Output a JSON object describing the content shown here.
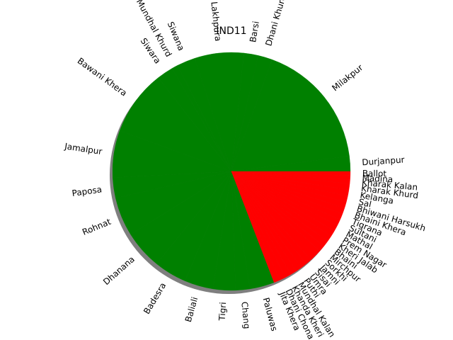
{
  "chart_data": {
    "type": "pie",
    "title": "IND11",
    "categories": [
      "Durjanpur",
      "Milakpur",
      "Dhani Khurd",
      "Barsi",
      "Lakhpura",
      "Siwana",
      "Mundhal Khurd",
      "Siwara",
      "Bawani Khera",
      "Jamalpur",
      "Paposa",
      "Rohnat",
      "Dhanana",
      "Badesra",
      "Baliali",
      "Tigri",
      "Chang",
      "Paluwas",
      "Jita Khera",
      "Dhani Chona",
      "Khanda Kheri",
      "Mundhal Kalan",
      "Puthi",
      "Umra",
      "Sisai",
      "Jamni",
      "Sorkhi",
      "Mirchpur",
      "Bhaini",
      "Kheri Jalab",
      "Prem Nagar",
      "Mathal",
      "Sultani",
      "Tigrana",
      "Bhaini Khera",
      "Bhiwani Harsukh",
      "Sal",
      "Kelanga",
      "Kharak Khurd",
      "Kharak Kalan",
      "Madina",
      "Ballot"
    ],
    "values": [
      7.5,
      62.5,
      7,
      7,
      24,
      9,
      3,
      8,
      32,
      23,
      10,
      19,
      19,
      16,
      14,
      11,
      7,
      12,
      3,
      3,
      3,
      3,
      3,
      3,
      3,
      3,
      3,
      3,
      3,
      3,
      3,
      3,
      3,
      3,
      3,
      3,
      3,
      3,
      3,
      2,
      2,
      2
    ],
    "colors": [
      "#008000",
      "#008000",
      "#008000",
      "#008000",
      "#008000",
      "#008000",
      "#008000",
      "#008000",
      "#008000",
      "#008000",
      "#008000",
      "#008000",
      "#008000",
      "#008000",
      "#008000",
      "#008000",
      "#008000",
      "#008000",
      "#ff0000",
      "#ff0000",
      "#ff0000",
      "#ff0000",
      "#ff0000",
      "#ff0000",
      "#ff0000",
      "#ff0000",
      "#ff0000",
      "#ff0000",
      "#ff0000",
      "#ff0000",
      "#ff0000",
      "#ff0000",
      "#ff0000",
      "#ff0000",
      "#ff0000",
      "#ff0000",
      "#ff0000",
      "#ff0000",
      "#ff0000",
      "#ff0000",
      "#ff0000",
      "#ff0000"
    ],
    "shadow": true,
    "rotate_labels": true
  }
}
